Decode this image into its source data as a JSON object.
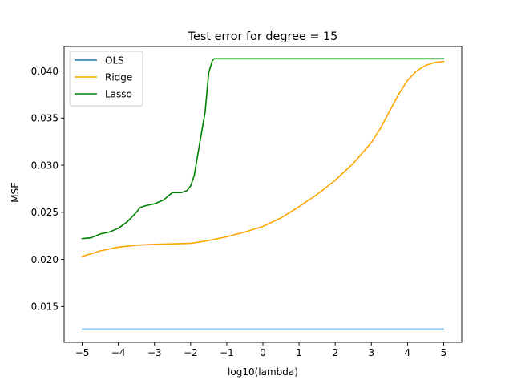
{
  "chart_data": {
    "type": "line",
    "title": "Test error for degree = 15",
    "xlabel": "log10(lambda)",
    "ylabel": "MSE",
    "xlim": [
      -5.5,
      5.5
    ],
    "ylim": [
      0.0112,
      0.0426
    ],
    "x_ticks": [
      -5,
      -4,
      -3,
      -2,
      -1,
      0,
      1,
      2,
      3,
      4,
      5
    ],
    "x_tick_labels": [
      "−5",
      "−4",
      "−3",
      "−2",
      "−1",
      "0",
      "1",
      "2",
      "3",
      "4",
      "5"
    ],
    "y_ticks": [
      0.015,
      0.02,
      0.025,
      0.03,
      0.035,
      0.04
    ],
    "y_tick_labels": [
      "0.015",
      "0.020",
      "0.025",
      "0.030",
      "0.035",
      "0.040"
    ],
    "grid": false,
    "legend_position": "top-left",
    "series": [
      {
        "name": "OLS",
        "color": "#1f77b4",
        "x": [
          -5,
          5
        ],
        "y": [
          0.0126,
          0.0126
        ]
      },
      {
        "name": "Ridge",
        "color": "#ffa500",
        "x": [
          -5,
          -4.5,
          -4,
          -3.5,
          -3,
          -2.5,
          -2,
          -1.5,
          -1,
          -0.5,
          0,
          0.5,
          1,
          1.5,
          2,
          2.5,
          3,
          3.25,
          3.5,
          3.75,
          4,
          4.25,
          4.5,
          4.75,
          5
        ],
        "y": [
          0.0203,
          0.0209,
          0.0213,
          0.0215,
          0.0216,
          0.02165,
          0.0217,
          0.022,
          0.0224,
          0.0229,
          0.0235,
          0.0244,
          0.0256,
          0.0269,
          0.0284,
          0.0302,
          0.0324,
          0.0339,
          0.0357,
          0.0375,
          0.039,
          0.04,
          0.0406,
          0.0409,
          0.041
        ]
      },
      {
        "name": "Lasso",
        "color": "#008000",
        "x": [
          -5,
          -4.75,
          -4.5,
          -4.25,
          -4,
          -3.75,
          -3.5,
          -3.4,
          -3.25,
          -3,
          -2.75,
          -2.6,
          -2.5,
          -2.25,
          -2.1,
          -2,
          -1.9,
          -1.75,
          -1.6,
          -1.5,
          -1.4,
          -1.35,
          -1.3,
          0,
          2,
          4,
          5
        ],
        "y": [
          0.0222,
          0.0223,
          0.0227,
          0.0229,
          0.0233,
          0.024,
          0.025,
          0.0255,
          0.0257,
          0.0259,
          0.0263,
          0.0268,
          0.0271,
          0.0271,
          0.0273,
          0.0278,
          0.0289,
          0.0323,
          0.0356,
          0.0398,
          0.0411,
          0.0413,
          0.0413,
          0.0413,
          0.0413,
          0.0413,
          0.0413
        ]
      }
    ]
  }
}
